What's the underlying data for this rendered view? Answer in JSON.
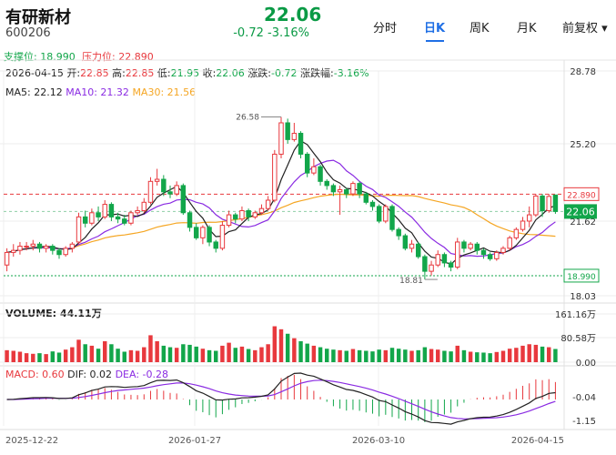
{
  "stock": {
    "name": "有研新材",
    "code": "600206",
    "price": "22.06",
    "change": "-0.72 -3.16%"
  },
  "tabs": [
    "分时",
    "日K",
    "周K",
    "月K",
    "前复权 ▾"
  ],
  "levels": {
    "support_label": "支撑位: 18.990",
    "resistance_label": "压力位: 22.890"
  },
  "info": {
    "date": "2026-04-15",
    "open_label": "开:",
    "open": "22.85",
    "high_label": "高:",
    "high": "22.85",
    "low_label": "低:",
    "low": "21.95",
    "close_label": "收:",
    "close": "22.06",
    "chg_label": "涨跌:",
    "chg": "-0.72",
    "pct_label": "涨跌幅:",
    "pct": "-3.16%"
  },
  "ma": {
    "ma5": "MA5: 22.12",
    "ma10": "MA10: 21.32",
    "ma30": "MA30: 21.56"
  },
  "volume": {
    "label": "VOLUME: 44.11万"
  },
  "macd": {
    "macd": "MACD: 0.60",
    "dif": "DIF: 0.02",
    "dea": "DEA: -0.28"
  },
  "colors": {
    "up": "#e8383d",
    "down": "#12a64a",
    "ma5": "#222222",
    "ma10": "#8a2be2",
    "ma30": "#f5a623",
    "level": "#e8383d",
    "accent": "#1f6fe5"
  },
  "chart_data": {
    "type": "candlestick",
    "price_axis": [
      "28.78",
      "25.20",
      "21.62",
      "18.03"
    ],
    "price_range": [
      18.03,
      28.78
    ],
    "markers": {
      "resistance": "22.890",
      "support": "18.990",
      "last": "22.06",
      "high": "26.58",
      "low": "18.81"
    },
    "volume_axis": [
      "161.16万",
      "80.58万",
      "0.00"
    ],
    "volume_max": 161.16,
    "macd_axis": [
      "-0.04",
      "-1.15"
    ],
    "x_labels": [
      "2025-12-22",
      "2026-01-27",
      "2026-03-10",
      "2026-04-15"
    ],
    "candles": [
      {
        "o": 19.5,
        "c": 20.1,
        "h": 20.3,
        "l": 19.2,
        "v": 40
      },
      {
        "o": 20.1,
        "c": 20.2,
        "h": 20.5,
        "l": 19.9,
        "v": 38
      },
      {
        "o": 20.2,
        "c": 20.4,
        "h": 20.6,
        "l": 20.0,
        "v": 35
      },
      {
        "o": 20.4,
        "c": 20.4,
        "h": 20.6,
        "l": 20.2,
        "v": 30
      },
      {
        "o": 20.4,
        "c": 20.5,
        "h": 20.7,
        "l": 20.2,
        "v": 28
      },
      {
        "o": 20.5,
        "c": 20.3,
        "h": 20.6,
        "l": 20.1,
        "v": 30
      },
      {
        "o": 20.3,
        "c": 20.4,
        "h": 20.5,
        "l": 20.1,
        "v": 27
      },
      {
        "o": 20.4,
        "c": 20.2,
        "h": 20.5,
        "l": 20.0,
        "v": 36
      },
      {
        "o": 20.2,
        "c": 20.0,
        "h": 20.3,
        "l": 19.8,
        "v": 32
      },
      {
        "o": 20.0,
        "c": 20.3,
        "h": 20.4,
        "l": 19.9,
        "v": 42
      },
      {
        "o": 20.3,
        "c": 20.5,
        "h": 20.6,
        "l": 20.1,
        "v": 50
      },
      {
        "o": 20.6,
        "c": 21.8,
        "h": 22.0,
        "l": 20.5,
        "v": 75
      },
      {
        "o": 21.8,
        "c": 21.5,
        "h": 22.1,
        "l": 21.3,
        "v": 60
      },
      {
        "o": 21.5,
        "c": 22.0,
        "h": 22.2,
        "l": 21.4,
        "v": 55
      },
      {
        "o": 22.0,
        "c": 21.8,
        "h": 22.3,
        "l": 21.6,
        "v": 45
      },
      {
        "o": 21.8,
        "c": 22.4,
        "h": 22.6,
        "l": 21.7,
        "v": 70
      },
      {
        "o": 22.4,
        "c": 21.8,
        "h": 22.5,
        "l": 21.6,
        "v": 60
      },
      {
        "o": 21.8,
        "c": 21.7,
        "h": 22.0,
        "l": 21.5,
        "v": 45
      },
      {
        "o": 21.7,
        "c": 21.5,
        "h": 21.9,
        "l": 21.4,
        "v": 35
      },
      {
        "o": 21.5,
        "c": 22.0,
        "h": 22.1,
        "l": 21.4,
        "v": 40
      },
      {
        "o": 22.0,
        "c": 22.1,
        "h": 22.3,
        "l": 21.9,
        "v": 38
      },
      {
        "o": 22.1,
        "c": 22.5,
        "h": 22.7,
        "l": 22.0,
        "v": 50
      },
      {
        "o": 22.5,
        "c": 23.5,
        "h": 23.7,
        "l": 22.4,
        "v": 90
      },
      {
        "o": 23.5,
        "c": 23.6,
        "h": 24.1,
        "l": 23.3,
        "v": 70
      },
      {
        "o": 23.6,
        "c": 23.0,
        "h": 23.8,
        "l": 22.8,
        "v": 55
      },
      {
        "o": 23.0,
        "c": 22.9,
        "h": 23.3,
        "l": 22.7,
        "v": 50
      },
      {
        "o": 22.9,
        "c": 23.3,
        "h": 23.5,
        "l": 22.8,
        "v": 48
      },
      {
        "o": 23.3,
        "c": 22.0,
        "h": 23.4,
        "l": 21.9,
        "v": 60
      },
      {
        "o": 22.0,
        "c": 21.3,
        "h": 22.1,
        "l": 21.1,
        "v": 58
      },
      {
        "o": 21.3,
        "c": 20.8,
        "h": 21.5,
        "l": 20.7,
        "v": 52
      },
      {
        "o": 20.8,
        "c": 21.3,
        "h": 21.4,
        "l": 20.5,
        "v": 45
      },
      {
        "o": 21.3,
        "c": 20.6,
        "h": 21.4,
        "l": 20.4,
        "v": 40
      },
      {
        "o": 20.6,
        "c": 20.3,
        "h": 20.7,
        "l": 20.1,
        "v": 38
      },
      {
        "o": 20.3,
        "c": 21.4,
        "h": 21.6,
        "l": 20.2,
        "v": 55
      },
      {
        "o": 21.4,
        "c": 21.9,
        "h": 22.1,
        "l": 21.3,
        "v": 65
      },
      {
        "o": 21.9,
        "c": 21.7,
        "h": 22.0,
        "l": 21.5,
        "v": 48
      },
      {
        "o": 21.7,
        "c": 22.1,
        "h": 22.3,
        "l": 21.6,
        "v": 52
      },
      {
        "o": 22.1,
        "c": 21.8,
        "h": 22.2,
        "l": 21.6,
        "v": 44
      },
      {
        "o": 21.8,
        "c": 22.0,
        "h": 22.1,
        "l": 21.7,
        "v": 40
      },
      {
        "o": 22.0,
        "c": 22.2,
        "h": 22.4,
        "l": 21.9,
        "v": 50
      },
      {
        "o": 22.2,
        "c": 22.6,
        "h": 22.8,
        "l": 22.1,
        "v": 60
      },
      {
        "o": 22.6,
        "c": 24.8,
        "h": 25.0,
        "l": 22.5,
        "v": 120
      },
      {
        "o": 24.8,
        "c": 26.3,
        "h": 26.58,
        "l": 24.6,
        "v": 110
      },
      {
        "o": 26.3,
        "c": 25.5,
        "h": 26.5,
        "l": 25.3,
        "v": 95
      },
      {
        "o": 25.5,
        "c": 25.8,
        "h": 26.3,
        "l": 25.4,
        "v": 80
      },
      {
        "o": 25.8,
        "c": 24.8,
        "h": 25.9,
        "l": 24.6,
        "v": 70
      },
      {
        "o": 24.8,
        "c": 23.9,
        "h": 24.9,
        "l": 23.7,
        "v": 62
      },
      {
        "o": 23.9,
        "c": 24.2,
        "h": 24.6,
        "l": 23.8,
        "v": 55
      },
      {
        "o": 24.2,
        "c": 23.5,
        "h": 24.3,
        "l": 23.3,
        "v": 50
      },
      {
        "o": 23.5,
        "c": 23.3,
        "h": 23.6,
        "l": 23.1,
        "v": 45
      },
      {
        "o": 23.3,
        "c": 23.0,
        "h": 23.4,
        "l": 22.8,
        "v": 42
      },
      {
        "o": 23.0,
        "c": 23.1,
        "h": 23.3,
        "l": 21.9,
        "v": 40
      },
      {
        "o": 23.1,
        "c": 22.9,
        "h": 23.2,
        "l": 22.7,
        "v": 38
      },
      {
        "o": 22.9,
        "c": 23.4,
        "h": 23.5,
        "l": 22.8,
        "v": 44
      },
      {
        "o": 23.4,
        "c": 22.9,
        "h": 23.5,
        "l": 22.7,
        "v": 40
      },
      {
        "o": 22.9,
        "c": 22.5,
        "h": 23.0,
        "l": 22.4,
        "v": 38
      },
      {
        "o": 22.5,
        "c": 22.3,
        "h": 22.6,
        "l": 22.1,
        "v": 36
      },
      {
        "o": 22.3,
        "c": 21.6,
        "h": 22.4,
        "l": 21.5,
        "v": 42
      },
      {
        "o": 21.6,
        "c": 22.3,
        "h": 22.4,
        "l": 21.5,
        "v": 40
      },
      {
        "o": 22.3,
        "c": 21.2,
        "h": 22.4,
        "l": 21.1,
        "v": 48
      },
      {
        "o": 21.2,
        "c": 20.9,
        "h": 21.3,
        "l": 20.7,
        "v": 45
      },
      {
        "o": 20.9,
        "c": 20.3,
        "h": 21.0,
        "l": 20.2,
        "v": 42
      },
      {
        "o": 20.3,
        "c": 20.5,
        "h": 20.7,
        "l": 20.1,
        "v": 38
      },
      {
        "o": 20.5,
        "c": 19.9,
        "h": 20.6,
        "l": 19.8,
        "v": 40
      },
      {
        "o": 19.9,
        "c": 19.2,
        "h": 20.0,
        "l": 18.81,
        "v": 50
      },
      {
        "o": 19.2,
        "c": 19.5,
        "h": 19.7,
        "l": 19.0,
        "v": 44
      },
      {
        "o": 19.5,
        "c": 20.0,
        "h": 20.2,
        "l": 19.4,
        "v": 42
      },
      {
        "o": 20.0,
        "c": 19.6,
        "h": 20.1,
        "l": 19.4,
        "v": 38
      },
      {
        "o": 19.6,
        "c": 19.4,
        "h": 19.7,
        "l": 19.2,
        "v": 36
      },
      {
        "o": 19.4,
        "c": 20.6,
        "h": 20.8,
        "l": 19.3,
        "v": 55
      },
      {
        "o": 20.6,
        "c": 20.3,
        "h": 20.7,
        "l": 20.1,
        "v": 40
      },
      {
        "o": 20.3,
        "c": 20.5,
        "h": 20.6,
        "l": 20.2,
        "v": 35
      },
      {
        "o": 20.5,
        "c": 20.2,
        "h": 20.6,
        "l": 20.0,
        "v": 33
      },
      {
        "o": 20.2,
        "c": 20.0,
        "h": 20.3,
        "l": 19.8,
        "v": 32
      },
      {
        "o": 20.0,
        "c": 19.8,
        "h": 20.1,
        "l": 19.7,
        "v": 30
      },
      {
        "o": 19.8,
        "c": 20.1,
        "h": 20.2,
        "l": 19.7,
        "v": 34
      },
      {
        "o": 20.1,
        "c": 20.3,
        "h": 20.4,
        "l": 20.0,
        "v": 38
      },
      {
        "o": 20.3,
        "c": 20.8,
        "h": 20.9,
        "l": 20.2,
        "v": 45
      },
      {
        "o": 20.8,
        "c": 21.2,
        "h": 21.3,
        "l": 20.7,
        "v": 48
      },
      {
        "o": 21.2,
        "c": 21.6,
        "h": 21.8,
        "l": 21.1,
        "v": 55
      },
      {
        "o": 21.6,
        "c": 21.9,
        "h": 22.3,
        "l": 21.3,
        "v": 60
      },
      {
        "o": 21.9,
        "c": 22.8,
        "h": 22.9,
        "l": 21.8,
        "v": 58
      },
      {
        "o": 22.8,
        "c": 22.1,
        "h": 22.9,
        "l": 21.8,
        "v": 52
      },
      {
        "o": 22.1,
        "c": 22.78,
        "h": 22.9,
        "l": 22.0,
        "v": 50
      },
      {
        "o": 22.85,
        "c": 22.06,
        "h": 22.85,
        "l": 21.95,
        "v": 44.11
      }
    ]
  }
}
